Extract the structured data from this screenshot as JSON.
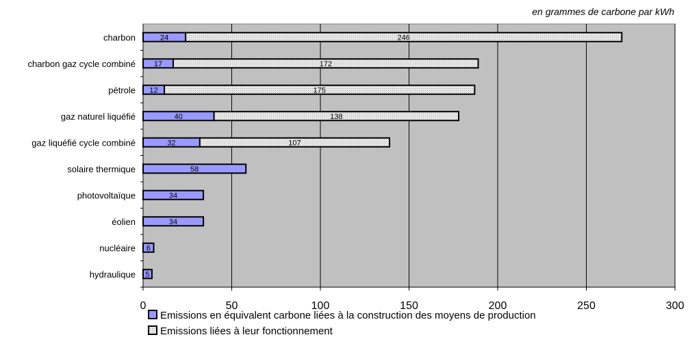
{
  "chart_data": {
    "type": "bar",
    "orientation": "horizontal",
    "stacked": true,
    "unit_note": "en grammes de carbone par kWh",
    "categories": [
      "charbon",
      "charbon gaz cycle combiné",
      "pétrole",
      "gaz naturel liquéfié",
      "gaz liquéfié cycle combiné",
      "solaire thermique",
      "photovoltaïque",
      "éolien",
      "nucléaire",
      "hydraulique"
    ],
    "series": [
      {
        "name": "Emissions en équivalent carbone liées à la construction des moyens de production",
        "color": "#9999ff",
        "pattern": "solid",
        "values": [
          24,
          17,
          12,
          40,
          32,
          58,
          34,
          34,
          6,
          5
        ]
      },
      {
        "name": "Emissions liées à leur fonctionnement",
        "color": "#e6e6e6",
        "pattern": "dotted",
        "values": [
          246,
          172,
          175,
          138,
          107,
          null,
          null,
          null,
          null,
          null
        ]
      }
    ],
    "xlim": [
      0,
      300
    ],
    "xticks": [
      "0",
      "50",
      "100",
      "150",
      "200",
      "250",
      "300"
    ],
    "plot_background": "#c0c0c0",
    "grid": "vertical",
    "legend_position": "bottom"
  }
}
